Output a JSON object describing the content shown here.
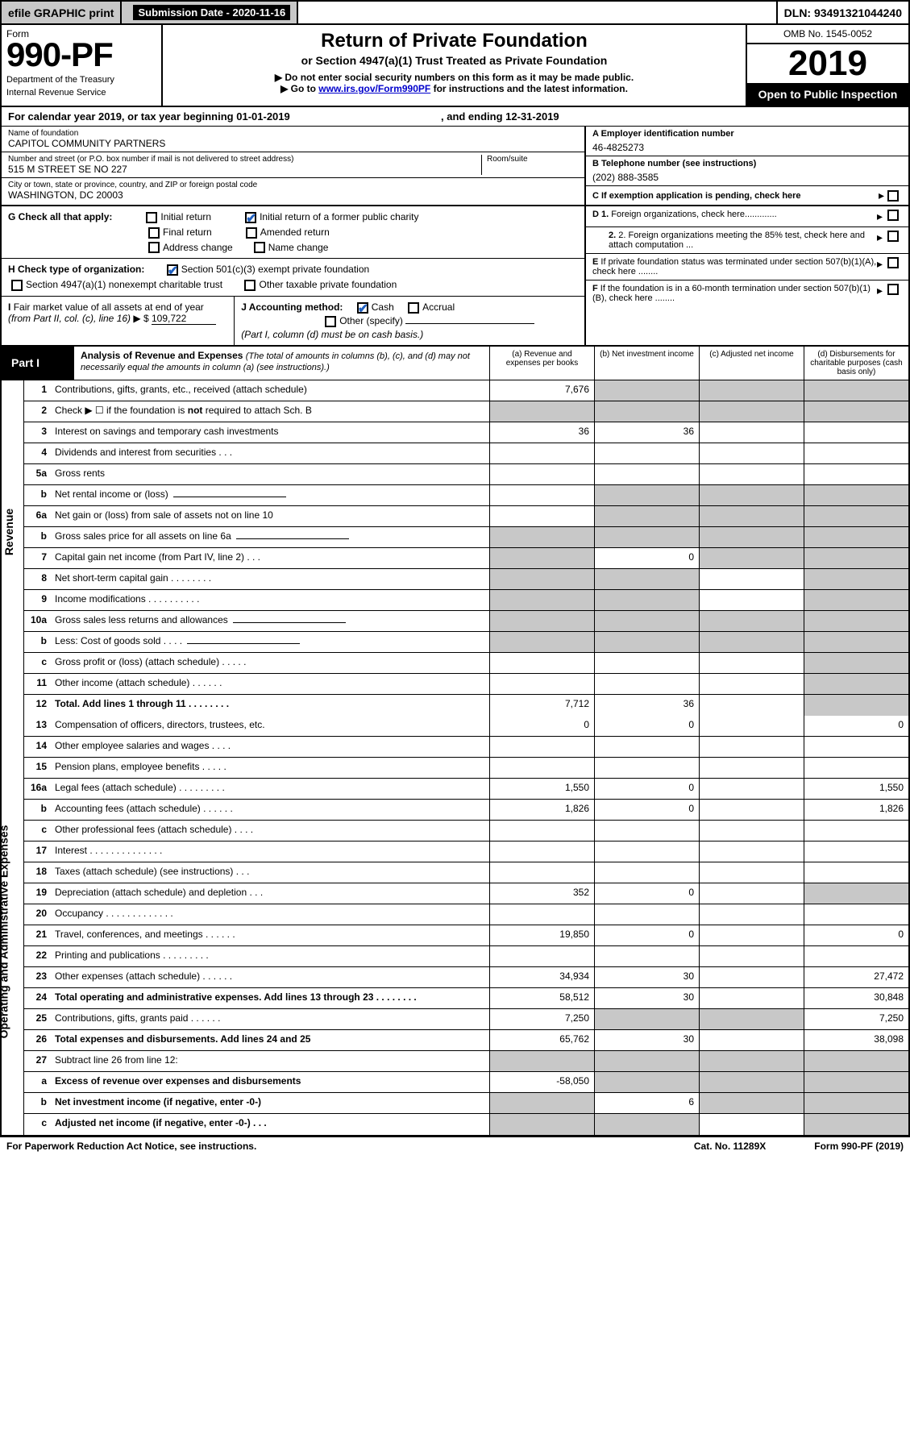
{
  "topbar": {
    "efile": "efile GRAPHIC print",
    "subdate_label": "Submission Date - 2020-11-16",
    "dln": "DLN: 93491321044240"
  },
  "header": {
    "form_word": "Form",
    "form_num": "990-PF",
    "dept": "Department of the Treasury",
    "irs": "Internal Revenue Service",
    "title": "Return of Private Foundation",
    "subtitle": "or Section 4947(a)(1) Trust Treated as Private Foundation",
    "note1": "▶ Do not enter social security numbers on this form as it may be made public.",
    "note2_pre": "▶ Go to ",
    "note2_link": "www.irs.gov/Form990PF",
    "note2_post": " for instructions and the latest information.",
    "omb": "OMB No. 1545-0052",
    "year": "2019",
    "open": "Open to Public Inspection"
  },
  "cal": {
    "text_pre": "For calendar year 2019, or tax year beginning ",
    "begin": "01-01-2019",
    "text_mid": " , and ending ",
    "end": "12-31-2019"
  },
  "id": {
    "name_lbl": "Name of foundation",
    "name": "CAPITOL COMMUNITY PARTNERS",
    "addr_lbl": "Number and street (or P.O. box number if mail is not delivered to street address)",
    "addr": "515 M STREET SE NO 227",
    "room_lbl": "Room/suite",
    "room": "",
    "city_lbl": "City or town, state or province, country, and ZIP or foreign postal code",
    "city": "WASHINGTON, DC  20003",
    "ein_lbl": "A Employer identification number",
    "ein": "46-4825273",
    "tel_lbl": "B Telephone number (see instructions)",
    "tel": "(202) 888-3585",
    "c_lbl": "C If exemption application is pending, check here",
    "d1": "D 1. Foreign organizations, check here.............",
    "d2": "2. Foreign organizations meeting the 85% test, check here and attach computation ...",
    "e": "E If private foundation status was terminated under section 507(b)(1)(A), check here ........",
    "f": "F If the foundation is in a 60-month termination under section 507(b)(1)(B), check here ........"
  },
  "g": {
    "label": "G Check all that apply:",
    "initial": "Initial return",
    "initial_former": "Initial return of a former public charity",
    "final": "Final return",
    "amended": "Amended return",
    "addr_change": "Address change",
    "name_change": "Name change"
  },
  "h": {
    "label": "H Check type of organization:",
    "s501": "Section 501(c)(3) exempt private foundation",
    "s4947": "Section 4947(a)(1) nonexempt charitable trust",
    "other_tax": "Other taxable private foundation"
  },
  "i": {
    "label": "I Fair market value of all assets at end of year (from Part II, col. (c), line 16) ▶ $",
    "value": "109,722"
  },
  "j": {
    "label": "J Accounting method:",
    "cash": "Cash",
    "accrual": "Accrual",
    "other": "Other (specify)",
    "note": "(Part I, column (d) must be on cash basis.)"
  },
  "part1": {
    "label": "Part I",
    "title": "Analysis of Revenue and Expenses",
    "note": "(The total of amounts in columns (b), (c), and (d) may not necessarily equal the amounts in column (a) (see instructions).)",
    "col_a": "(a) Revenue and expenses per books",
    "col_b": "(b) Net investment income",
    "col_c": "(c) Adjusted net income",
    "col_d": "(d) Disbursements for charitable purposes (cash basis only)"
  },
  "vtab": {
    "revenue": "Revenue",
    "expenses": "Operating and Administrative Expenses"
  },
  "rows": {
    "r1": {
      "n": "1",
      "t": "Contributions, gifts, grants, etc., received (attach schedule)",
      "a": "7,676",
      "bgrey": true,
      "cgrey": true,
      "dgrey": true
    },
    "r2": {
      "n": "2",
      "t": "Check ▶ ☐ if the foundation is not required to attach Sch. B",
      "bold_sub": "not",
      "a": "",
      "nocells": true
    },
    "r3": {
      "n": "3",
      "t": "Interest on savings and temporary cash investments",
      "a": "36",
      "b": "36"
    },
    "r4": {
      "n": "4",
      "t": "Dividends and interest from securities  .  .  .",
      "a": "",
      "b": ""
    },
    "r5a": {
      "n": "5a",
      "t": "Gross rents",
      "a": "",
      "b": "",
      "dots": true
    },
    "r5b": {
      "n": "b",
      "t": "Net rental income or (loss)",
      "a": "",
      "bgrey": true,
      "cgrey": true,
      "dgrey": true,
      "uline": true
    },
    "r6a": {
      "n": "6a",
      "t": "Net gain or (loss) from sale of assets not on line 10",
      "a": "",
      "bgrey": true,
      "cgrey": true,
      "dgrey": true
    },
    "r6b": {
      "n": "b",
      "t": "Gross sales price for all assets on line 6a",
      "bgrey": true,
      "cgrey": true,
      "dgrey": true,
      "agrey": true,
      "uline": true
    },
    "r7": {
      "n": "7",
      "t": "Capital gain net income (from Part IV, line 2)  .  .  .",
      "agrey": true,
      "b": "0",
      "cgrey": true,
      "dgrey": true
    },
    "r8": {
      "n": "8",
      "t": "Net short-term capital gain  .  .  .  .  .  .  .  .",
      "agrey": true,
      "bgrey": true,
      "dgrey": true
    },
    "r9": {
      "n": "9",
      "t": "Income modifications  .  .  .  .  .  .  .  .  .  .",
      "agrey": true,
      "bgrey": true,
      "dgrey": true
    },
    "r10a": {
      "n": "10a",
      "t": "Gross sales less returns and allowances",
      "agrey": true,
      "bgrey": true,
      "cgrey": true,
      "dgrey": true,
      "uline": true
    },
    "r10b": {
      "n": "b",
      "t": "Less: Cost of goods sold  .  .  .  .",
      "agrey": true,
      "bgrey": true,
      "cgrey": true,
      "dgrey": true,
      "uline": true
    },
    "r10c": {
      "n": "c",
      "t": "Gross profit or (loss) (attach schedule)  .  .  .  .  .",
      "dgrey": true
    },
    "r11": {
      "n": "11",
      "t": "Other income (attach schedule)  .  .  .  .  .  .",
      "dgrey": true
    },
    "r12": {
      "n": "12",
      "t": "Total. Add lines 1 through 11  .  .  .  .  .  .  .  .",
      "bold": true,
      "a": "7,712",
      "b": "36",
      "dgrey": true
    },
    "r13": {
      "n": "13",
      "t": "Compensation of officers, directors, trustees, etc.",
      "a": "0",
      "b": "0",
      "d": "0"
    },
    "r14": {
      "n": "14",
      "t": "Other employee salaries and wages  .  .  .  ."
    },
    "r15": {
      "n": "15",
      "t": "Pension plans, employee benefits  .  .  .  .  ."
    },
    "r16a": {
      "n": "16a",
      "t": "Legal fees (attach schedule)  .  .  .  .  .  .  .  .  .",
      "a": "1,550",
      "b": "0",
      "d": "1,550"
    },
    "r16b": {
      "n": "b",
      "t": "Accounting fees (attach schedule)  .  .  .  .  .  .",
      "a": "1,826",
      "b": "0",
      "d": "1,826"
    },
    "r16c": {
      "n": "c",
      "t": "Other professional fees (attach schedule)  .  .  .  ."
    },
    "r17": {
      "n": "17",
      "t": "Interest  .  .  .  .  .  .  .  .  .  .  .  .  .  ."
    },
    "r18": {
      "n": "18",
      "t": "Taxes (attach schedule) (see instructions)  .  .  ."
    },
    "r19": {
      "n": "19",
      "t": "Depreciation (attach schedule) and depletion  .  .  .",
      "a": "352",
      "b": "0",
      "dgrey": true
    },
    "r20": {
      "n": "20",
      "t": "Occupancy  .  .  .  .  .  .  .  .  .  .  .  .  ."
    },
    "r21": {
      "n": "21",
      "t": "Travel, conferences, and meetings  .  .  .  .  .  .",
      "a": "19,850",
      "b": "0",
      "d": "0"
    },
    "r22": {
      "n": "22",
      "t": "Printing and publications  .  .  .  .  .  .  .  .  ."
    },
    "r23": {
      "n": "23",
      "t": "Other expenses (attach schedule)  .  .  .  .  .  .",
      "a": "34,934",
      "b": "30",
      "d": "27,472"
    },
    "r24": {
      "n": "24",
      "t": "Total operating and administrative expenses. Add lines 13 through 23  .  .  .  .  .  .  .  .",
      "bold": true,
      "a": "58,512",
      "b": "30",
      "d": "30,848"
    },
    "r25": {
      "n": "25",
      "t": "Contributions, gifts, grants paid  .  .  .  .  .  .",
      "a": "7,250",
      "bgrey": true,
      "cgrey": true,
      "d": "7,250"
    },
    "r26": {
      "n": "26",
      "t": "Total expenses and disbursements. Add lines 24 and 25",
      "bold": true,
      "a": "65,762",
      "b": "30",
      "d": "38,098"
    },
    "r27": {
      "n": "27",
      "t": "Subtract line 26 from line 12:",
      "agrey": true,
      "bgrey": true,
      "cgrey": true,
      "dgrey": true
    },
    "r27a": {
      "n": "a",
      "t": "Excess of revenue over expenses and disbursements",
      "bold": true,
      "a": "-58,050",
      "bgrey": true,
      "cgrey": true,
      "dgrey": true
    },
    "r27b": {
      "n": "b",
      "t": "Net investment income (if negative, enter -0-)",
      "bold": true,
      "agrey": true,
      "b": "6",
      "cgrey": true,
      "dgrey": true
    },
    "r27c": {
      "n": "c",
      "t": "Adjusted net income (if negative, enter -0-)  .  .  .",
      "bold": true,
      "agrey": true,
      "bgrey": true,
      "dgrey": true
    }
  },
  "footer": {
    "left": "For Paperwork Reduction Act Notice, see instructions.",
    "mid": "Cat. No. 11289X",
    "right": "Form 990-PF (2019)"
  },
  "colors": {
    "grey": "#c8c8c8",
    "black": "#000000",
    "link": "#0000cc",
    "check": "#2060c0"
  }
}
